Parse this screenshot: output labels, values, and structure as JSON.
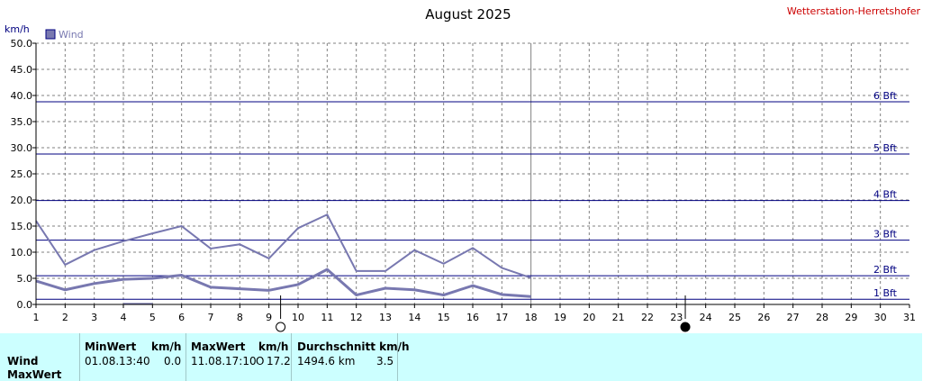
{
  "title": "August 2025",
  "station": "Wetterstation-Herretshofer",
  "colors": {
    "axis": "#000000",
    "grid": "#808080",
    "beaufort": "#000080",
    "series": "#7878b0",
    "station": "#cc0000",
    "table_bg": "#ccffff"
  },
  "chart_data": {
    "type": "line",
    "title": "August 2025",
    "ylabel": "km/h",
    "xlabel": "",
    "xlim": [
      1,
      31
    ],
    "ylim": [
      0,
      50
    ],
    "x_ticks": [
      "1",
      "2",
      "3",
      "4",
      "5",
      "6",
      "7",
      "8",
      "9",
      "10",
      "11",
      "12",
      "13",
      "14",
      "15",
      "16",
      "17",
      "18",
      "19",
      "20",
      "21",
      "22",
      "23",
      "24",
      "25",
      "26",
      "27",
      "28",
      "29",
      "30",
      "31"
    ],
    "y_ticks": [
      "0.0",
      "5.0",
      "10.0",
      "15.0",
      "20.0",
      "25.0",
      "30.0",
      "35.0",
      "40.0",
      "45.0",
      "50.0"
    ],
    "grid": true,
    "legend": {
      "position": "top-left",
      "entries": [
        "Wind"
      ]
    },
    "series": [
      {
        "name": "Wind",
        "role": "max",
        "x": [
          1,
          2,
          3,
          4,
          5,
          6,
          7,
          8,
          9,
          10,
          11,
          12,
          13,
          14,
          15,
          16,
          17,
          18
        ],
        "values": [
          16.0,
          7.6,
          10.4,
          12.1,
          13.6,
          15.0,
          10.7,
          11.5,
          8.8,
          14.6,
          17.2,
          6.4,
          6.4,
          10.4,
          7.8,
          10.8,
          7.0,
          5.1
        ]
      },
      {
        "name": "",
        "role": "avg",
        "x": [
          1,
          2,
          3,
          4,
          5,
          6,
          7,
          8,
          9,
          10,
          11,
          12,
          13,
          14,
          15,
          16,
          17,
          18
        ],
        "values": [
          4.5,
          2.8,
          4.0,
          4.8,
          5.0,
          5.6,
          3.3,
          3.0,
          2.7,
          3.8,
          6.7,
          1.8,
          3.1,
          2.8,
          1.8,
          3.6,
          1.9,
          1.5
        ]
      },
      {
        "name": "",
        "role": "min",
        "x": [
          4,
          5
        ],
        "values": [
          0.1,
          0.1
        ]
      }
    ],
    "beaufort_lines": [
      {
        "label": "1 Bft",
        "value": 1.0
      },
      {
        "label": "2 Bft",
        "value": 5.5
      },
      {
        "label": "3 Bft",
        "value": 12.3
      },
      {
        "label": "4 Bft",
        "value": 19.9
      },
      {
        "label": "5 Bft",
        "value": 28.8
      },
      {
        "label": "6 Bft",
        "value": 38.8
      }
    ],
    "current_day": 18,
    "moon_markers": [
      {
        "day": 9.4,
        "phase": "full"
      },
      {
        "day": 23.3,
        "phase": "new"
      }
    ]
  },
  "table": {
    "row_labels": [
      "Wind",
      "MaxWert"
    ],
    "min_header": "MinWert",
    "min_unit": "km/h",
    "min_date": "01.08.",
    "min_time": "13:40",
    "min_value": "0.0",
    "max_header": "MaxWert",
    "max_unit": "km/h",
    "max_date": "11.08.",
    "max_time": "17:10",
    "max_dir": "O",
    "max_value": "17.2",
    "avg_header": "Durchschnitt km/h",
    "avg_distance": "1494.6 km",
    "avg_value": "3.5"
  }
}
